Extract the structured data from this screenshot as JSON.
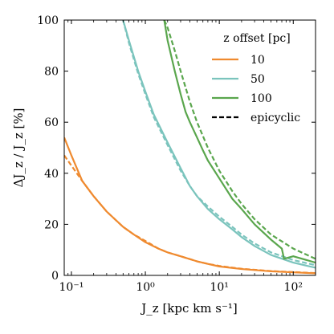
{
  "chart_data": {
    "type": "line",
    "xlabel": "J_z [kpc km s⁻¹]",
    "ylabel": "ΔJ_z / J_z [%]",
    "xscale": "log",
    "xlim": [
      0.08,
      200
    ],
    "ylim": [
      0,
      100
    ],
    "x_ticks": [
      {
        "value": 0.1,
        "label": "10⁻¹"
      },
      {
        "value": 1,
        "label": "10⁰"
      },
      {
        "value": 10,
        "label": "10¹"
      },
      {
        "value": 100,
        "label": "10²"
      }
    ],
    "y_ticks": [
      0,
      20,
      40,
      60,
      80,
      100
    ],
    "grid": false,
    "legend": {
      "title": "z offset [pc]",
      "placement": "top-right",
      "entries": [
        "10",
        "50",
        "100",
        "epicyclic"
      ]
    },
    "series": [
      {
        "name": "10",
        "color": "#ef8a2f",
        "style": "solid",
        "x": [
          0.08,
          0.1,
          0.14,
          0.2,
          0.3,
          0.5,
          0.7,
          1,
          1.5,
          2,
          3,
          5,
          7,
          10,
          20,
          50,
          100,
          200
        ],
        "y": [
          54,
          47,
          37,
          31,
          25,
          19,
          16,
          13,
          10.5,
          9,
          7.5,
          5.5,
          4.5,
          3.5,
          2.5,
          1.6,
          1.2,
          0.8
        ]
      },
      {
        "name": "10 epicyclic",
        "color": "#ef8a2f",
        "style": "dashed",
        "x": [
          0.08,
          0.1,
          0.14,
          0.2,
          0.3,
          0.5,
          0.7,
          1,
          1.5,
          2,
          3,
          5,
          7,
          10,
          20,
          50,
          100,
          200
        ],
        "y": [
          47,
          43,
          37,
          31,
          25,
          19,
          16,
          13.5,
          10.5,
          9,
          7.5,
          5.5,
          4.5,
          3.7,
          2.6,
          1.7,
          1.3,
          0.9
        ]
      },
      {
        "name": "50",
        "color": "#7bc4bd",
        "style": "solid",
        "x": [
          0.5,
          0.6,
          0.8,
          1,
          1.3,
          2,
          3,
          4,
          5,
          7,
          10,
          15,
          20,
          30,
          50,
          100,
          200
        ],
        "y": [
          100,
          92,
          80,
          72,
          63,
          52,
          42,
          35,
          31,
          26,
          22,
          18,
          15,
          11.5,
          8,
          5,
          3
        ]
      },
      {
        "name": "50 epicyclic",
        "color": "#7bc4bd",
        "style": "dashed",
        "x": [
          0.5,
          0.6,
          0.8,
          1,
          1.3,
          2,
          3,
          4,
          5,
          7,
          10,
          15,
          20,
          30,
          50,
          100,
          200
        ],
        "y": [
          100,
          91,
          79,
          71,
          62,
          51,
          41,
          35,
          31,
          27,
          23,
          19,
          16,
          12.5,
          9,
          6,
          4
        ]
      },
      {
        "name": "100",
        "color": "#5aa64d",
        "style": "solid",
        "x": [
          1.8,
          2,
          2.5,
          3,
          3.5,
          4,
          5,
          6,
          7,
          10,
          15,
          20,
          30,
          50,
          70,
          75,
          100,
          200
        ],
        "y": [
          100,
          92,
          80,
          71,
          64,
          60,
          54,
          49,
          45,
          38,
          30,
          26,
          20,
          14,
          10.5,
          6.5,
          7.5,
          5
        ]
      },
      {
        "name": "100 epicyclic",
        "color": "#5aa64d",
        "style": "dashed",
        "x": [
          1.8,
          2,
          2.5,
          3,
          4,
          5,
          7,
          10,
          15,
          20,
          30,
          50,
          100,
          200
        ],
        "y": [
          100,
          97,
          88,
          80,
          68,
          60,
          50,
          41,
          33,
          28,
          22,
          16,
          10.5,
          6.5
        ]
      }
    ]
  }
}
